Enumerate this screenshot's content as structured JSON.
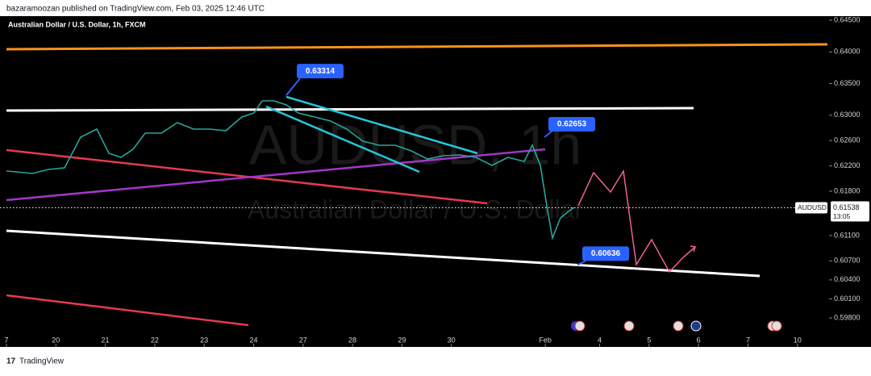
{
  "header": {
    "publisher": "bazaramoozan published on TradingView.com, Feb 03, 2025 12:46 UTC"
  },
  "chart_data": {
    "type": "line",
    "title": "Australian Dollar / U.S. Dollar, 1h, FXCM",
    "watermark": {
      "symbol": "AUDUSD, 1h",
      "name": "Australian Dollar / U.S. Dollar"
    },
    "x": [
      0,
      0.196,
      0.522,
      0.848,
      1.175,
      1.501,
      1.827,
      2.072,
      2.316,
      2.561,
      2.806,
      3.132,
      3.458,
      3.785,
      4.111,
      4.437,
      4.763,
      5.008,
      5.171,
      5.416,
      5.661,
      5.905,
      6.232,
      6.558,
      6.884,
      7.211,
      7.537,
      7.863,
      8.189,
      8.515,
      8.842,
      9.168,
      9.494,
      9.82,
      10.147,
      10.473,
      10.636,
      10.8,
      10.93,
      11.044,
      11.207,
      11.37,
      11.485
    ],
    "series": [
      {
        "name": "AUDUSD",
        "color": "#26a69a",
        "values": [
          0.62118,
          0.62105,
          0.6208,
          0.62144,
          0.62169,
          0.62653,
          0.6278,
          0.62398,
          0.62335,
          0.62462,
          0.62717,
          0.62717,
          0.62882,
          0.6278,
          0.6278,
          0.62755,
          0.62972,
          0.63035,
          0.63226,
          0.63226,
          0.63163,
          0.63035,
          0.62972,
          0.62908,
          0.6278,
          0.6259,
          0.62526,
          0.62526,
          0.62437,
          0.62309,
          0.6236,
          0.62373,
          0.62335,
          0.62207,
          0.62335,
          0.6227,
          0.62526,
          0.62207,
          0.6157,
          0.61061,
          0.61379,
          0.61481,
          0.61545
        ]
      }
    ],
    "last_price": {
      "value": 0.61538,
      "label": "0.61538",
      "countdown": "13:05"
    },
    "annotations": [
      {
        "value": 0.63314,
        "label": "0.63314"
      },
      {
        "value": 0.62653,
        "label": "0.62653"
      },
      {
        "value": 0.60636,
        "label": "0.60636"
      }
    ],
    "ylim": [
      0.59341,
      0.64564
    ],
    "yticks": [
      {
        "value": 0.645,
        "label": "0.64500"
      },
      {
        "value": 0.64,
        "label": "0.64000"
      },
      {
        "value": 0.635,
        "label": "0.63500"
      },
      {
        "value": 0.63,
        "label": "0.63000"
      },
      {
        "value": 0.626,
        "label": "0.62600"
      },
      {
        "value": 0.622,
        "label": "0.62200"
      },
      {
        "value": 0.618,
        "label": "0.61800"
      },
      {
        "value": 0.611,
        "label": "0.61100"
      },
      {
        "value": 0.607,
        "label": "0.60700"
      },
      {
        "value": 0.604,
        "label": "0.60400"
      },
      {
        "value": 0.601,
        "label": "0.60100"
      },
      {
        "value": 0.598,
        "label": "0.59800"
      }
    ],
    "xlim": [
      -0.13,
      16.64
    ],
    "xticks": [
      {
        "value": 0,
        "label": "7"
      },
      {
        "value": 1,
        "label": "20"
      },
      {
        "value": 2,
        "label": "21"
      },
      {
        "value": 3,
        "label": "22"
      },
      {
        "value": 4,
        "label": "23"
      },
      {
        "value": 5,
        "label": "24"
      },
      {
        "value": 6,
        "label": "27"
      },
      {
        "value": 7,
        "label": "28"
      },
      {
        "value": 8,
        "label": "29"
      },
      {
        "value": 9,
        "label": "30"
      },
      {
        "value": 10.9,
        "label": "Feb"
      },
      {
        "value": 12,
        "label": "4"
      },
      {
        "value": 13,
        "label": "5"
      },
      {
        "value": 14,
        "label": "6"
      },
      {
        "value": 15,
        "label": "7"
      },
      {
        "value": 16,
        "label": "10"
      }
    ]
  },
  "footer": {
    "brand": "TradingView"
  }
}
